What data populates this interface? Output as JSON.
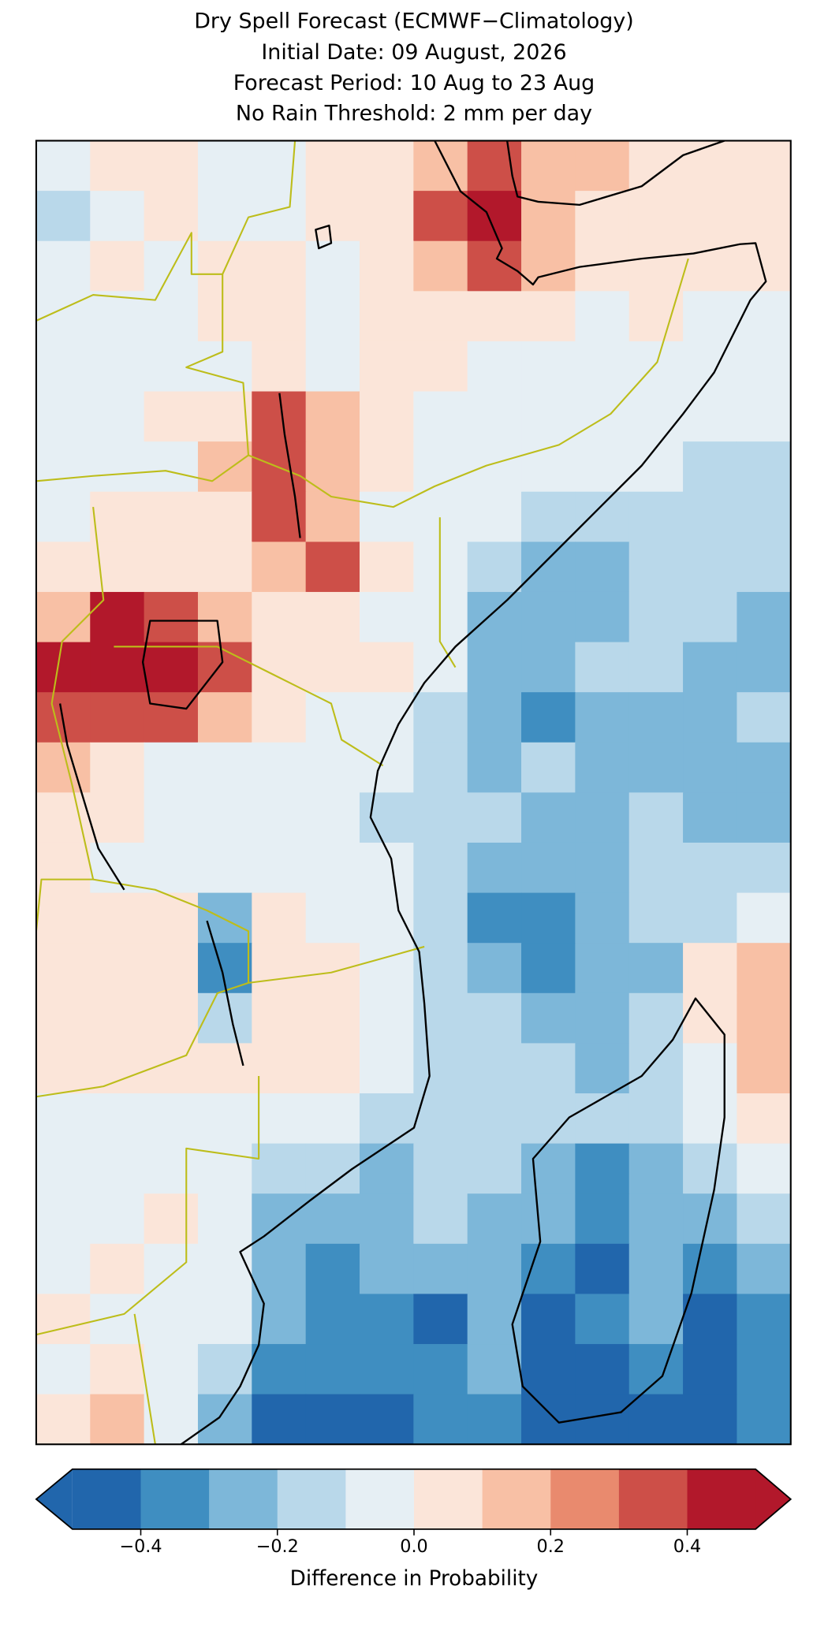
{
  "chart_data": {
    "type": "map",
    "title": [
      "Dry Spell Forecast (ECMWF−Climatology)",
      "Initial Date: 09 August, 2026",
      "Forecast Period: 10 Aug to 23 Aug",
      "No Rain Threshold: 2 mm per day"
    ],
    "cells": [
      [
        -0.05,
        0.05,
        0.05,
        -0.05,
        -0.05,
        0.05,
        0.05,
        0.15,
        0.35,
        0.15,
        0.15,
        0.05,
        0.05,
        0.05
      ],
      [
        -0.15,
        -0.05,
        0.05,
        -0.05,
        -0.05,
        0.05,
        0.05,
        0.35,
        0.45,
        0.15,
        0.05,
        0.05,
        0.05,
        0.05
      ],
      [
        -0.05,
        0.05,
        -0.05,
        0.05,
        0.05,
        -0.05,
        0.05,
        0.15,
        0.35,
        0.15,
        0.05,
        0.05,
        0.05,
        0.05
      ],
      [
        -0.05,
        -0.05,
        -0.05,
        0.05,
        0.05,
        -0.05,
        0.05,
        0.05,
        0.05,
        0.05,
        -0.05,
        0.05,
        -0.05,
        -0.05
      ],
      [
        -0.05,
        -0.05,
        -0.05,
        -0.05,
        0.05,
        -0.05,
        0.05,
        0.05,
        -0.05,
        -0.05,
        -0.05,
        -0.05,
        -0.05,
        -0.05
      ],
      [
        -0.05,
        -0.05,
        0.05,
        0.05,
        0.35,
        0.15,
        0.05,
        -0.05,
        -0.05,
        -0.05,
        -0.05,
        -0.05,
        -0.05,
        -0.05
      ],
      [
        -0.05,
        -0.05,
        -0.05,
        0.15,
        0.35,
        0.15,
        0.05,
        -0.05,
        -0.05,
        -0.05,
        -0.05,
        -0.05,
        -0.15,
        -0.15
      ],
      [
        -0.05,
        0.05,
        0.05,
        0.05,
        0.35,
        0.15,
        -0.05,
        -0.05,
        -0.05,
        -0.15,
        -0.15,
        -0.15,
        -0.15,
        -0.15
      ],
      [
        0.05,
        0.05,
        0.05,
        0.05,
        0.15,
        0.35,
        0.05,
        -0.05,
        -0.15,
        -0.25,
        -0.25,
        -0.15,
        -0.15,
        -0.15
      ],
      [
        0.15,
        0.45,
        0.35,
        0.15,
        0.05,
        0.05,
        -0.05,
        -0.05,
        -0.25,
        -0.25,
        -0.25,
        -0.15,
        -0.15,
        -0.25
      ],
      [
        0.45,
        0.45,
        0.45,
        0.35,
        0.05,
        0.05,
        0.05,
        -0.05,
        -0.25,
        -0.25,
        -0.15,
        -0.15,
        -0.25,
        -0.25
      ],
      [
        0.35,
        0.35,
        0.35,
        0.15,
        0.05,
        -0.05,
        -0.05,
        -0.15,
        -0.25,
        -0.35,
        -0.25,
        -0.25,
        -0.25,
        -0.15
      ],
      [
        0.15,
        0.05,
        -0.05,
        -0.05,
        -0.05,
        -0.05,
        -0.05,
        -0.15,
        -0.25,
        -0.15,
        -0.25,
        -0.25,
        -0.25,
        -0.25
      ],
      [
        0.05,
        0.05,
        -0.05,
        -0.05,
        -0.05,
        -0.05,
        -0.15,
        -0.15,
        -0.15,
        -0.25,
        -0.25,
        -0.15,
        -0.25,
        -0.25
      ],
      [
        0.05,
        -0.05,
        -0.05,
        -0.05,
        -0.05,
        -0.05,
        -0.05,
        -0.15,
        -0.25,
        -0.25,
        -0.25,
        -0.15,
        -0.15,
        -0.15
      ],
      [
        0.05,
        0.05,
        0.05,
        -0.25,
        0.05,
        -0.05,
        -0.05,
        -0.15,
        -0.35,
        -0.35,
        -0.25,
        -0.15,
        -0.15,
        -0.05
      ],
      [
        0.05,
        0.05,
        0.05,
        -0.35,
        0.05,
        0.05,
        -0.05,
        -0.15,
        -0.25,
        -0.35,
        -0.25,
        -0.25,
        0.05,
        0.15
      ],
      [
        0.05,
        0.05,
        0.05,
        -0.15,
        0.05,
        0.05,
        -0.05,
        -0.15,
        -0.15,
        -0.25,
        -0.25,
        -0.15,
        0.05,
        0.15
      ],
      [
        0.05,
        0.05,
        0.05,
        0.05,
        0.05,
        0.05,
        -0.05,
        -0.15,
        -0.15,
        -0.15,
        -0.25,
        -0.15,
        -0.05,
        0.15
      ],
      [
        -0.05,
        -0.05,
        -0.05,
        -0.05,
        -0.05,
        -0.05,
        -0.15,
        -0.15,
        -0.15,
        -0.15,
        -0.15,
        -0.15,
        -0.05,
        0.05
      ],
      [
        -0.05,
        -0.05,
        -0.05,
        -0.05,
        -0.15,
        -0.15,
        -0.25,
        -0.15,
        -0.15,
        -0.25,
        -0.35,
        -0.25,
        -0.15,
        -0.05
      ],
      [
        -0.05,
        -0.05,
        0.05,
        -0.05,
        -0.25,
        -0.25,
        -0.25,
        -0.15,
        -0.25,
        -0.25,
        -0.35,
        -0.25,
        -0.25,
        -0.15
      ],
      [
        -0.05,
        0.05,
        -0.05,
        -0.05,
        -0.25,
        -0.35,
        -0.25,
        -0.25,
        -0.25,
        -0.35,
        -0.45,
        -0.25,
        -0.35,
        -0.25
      ],
      [
        0.05,
        -0.05,
        -0.05,
        -0.05,
        -0.25,
        -0.35,
        -0.35,
        -0.45,
        -0.25,
        -0.45,
        -0.35,
        -0.25,
        -0.45,
        -0.35
      ],
      [
        -0.05,
        0.05,
        -0.05,
        -0.15,
        -0.35,
        -0.35,
        -0.35,
        -0.35,
        -0.25,
        -0.45,
        -0.45,
        -0.35,
        -0.45,
        -0.35
      ],
      [
        0.05,
        0.15,
        -0.05,
        -0.25,
        -0.45,
        -0.45,
        -0.45,
        -0.35,
        -0.35,
        -0.45,
        -0.45,
        -0.45,
        -0.45,
        -0.35
      ]
    ],
    "colorbar": {
      "label": "Difference in Probability",
      "levels": [
        -0.5,
        -0.4,
        -0.3,
        -0.2,
        -0.1,
        0,
        0.1,
        0.2,
        0.3,
        0.4,
        0.5
      ],
      "colors": [
        "#2166ac",
        "#3f8ec1",
        "#7db7d9",
        "#b9d8ea",
        "#e6eff4",
        "#fbe5d9",
        "#f8c0a5",
        "#e98a6e",
        "#cd4f48",
        "#b2182b"
      ],
      "extend": "both",
      "ticks": [
        {
          "value": -0.4,
          "label": "−0.4"
        },
        {
          "value": -0.2,
          "label": "−0.2"
        },
        {
          "value": 0,
          "label": "0.0"
        },
        0.2,
        0.4
      ]
    }
  }
}
